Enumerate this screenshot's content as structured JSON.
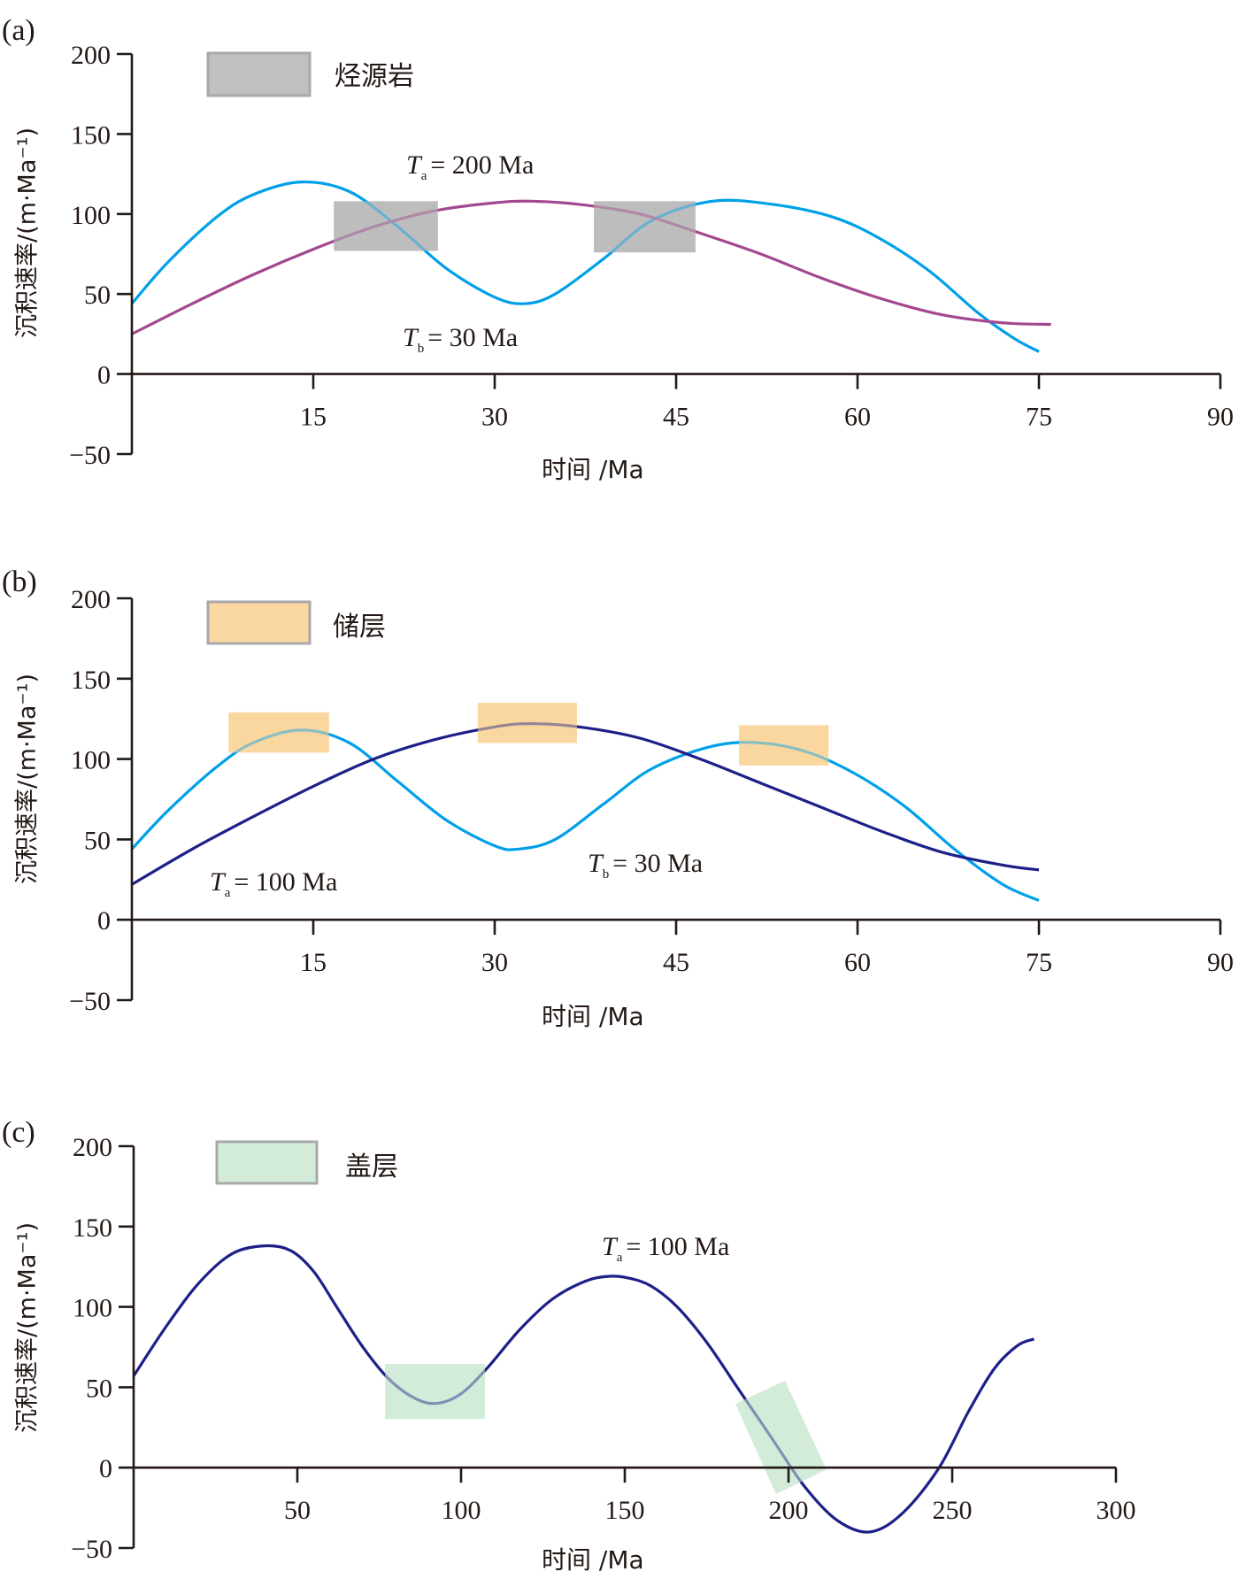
{
  "chart_data": [
    {
      "type": "line",
      "panel_label": "(a)",
      "xlabel": "时间 /Ma",
      "ylabel": "沉积速率/(m·Ma⁻¹)",
      "xlim": [
        0,
        90
      ],
      "ylim": [
        -50,
        200
      ],
      "xticks": [
        15,
        30,
        45,
        60,
        75,
        90
      ],
      "yticks": [
        -50,
        0,
        50,
        100,
        150,
        200
      ],
      "xtick_labels": [
        "15",
        "30",
        "45",
        "60",
        "75",
        "90"
      ],
      "ytick_labels": [
        "−50",
        "0",
        "50",
        "100",
        "150",
        "200"
      ],
      "legend": {
        "label": "烃源岩",
        "color": "#c0c0c0",
        "border": "#a8a8a8",
        "position": "top-left"
      },
      "series": [
        {
          "name": "Tb = 30 Ma",
          "color": "#00a0e9",
          "x": [
            0,
            3,
            7,
            10,
            14,
            18,
            22,
            26,
            30,
            32.5,
            35,
            39,
            43,
            48,
            53,
            58,
            62,
            66,
            70,
            73,
            75
          ],
          "y": [
            44,
            70,
            98,
            112,
            120,
            114,
            92,
            66,
            48,
            44,
            50,
            72,
            96,
            108,
            106,
            98,
            84,
            64,
            38,
            22,
            14
          ]
        },
        {
          "name": "Ta = 200 Ma",
          "color": "#a3478f",
          "x": [
            0,
            5,
            10,
            15,
            20,
            25,
            30,
            33,
            37,
            42,
            47,
            52,
            57,
            62,
            67,
            72,
            76
          ],
          "y": [
            25,
            44,
            62,
            78,
            92,
            102,
            107,
            108,
            106,
            100,
            88,
            75,
            60,
            47,
            37,
            32,
            31
          ]
        }
      ],
      "annotations": [
        {
          "kind": "label",
          "symbol": "T",
          "sub": "a",
          "text": "= 200 Ma",
          "x": 30,
          "y": 130
        },
        {
          "kind": "label",
          "symbol": "T",
          "sub": "b",
          "text": "= 30 Ma",
          "x": 30,
          "y": 24
        }
      ],
      "highlight_boxes": [
        {
          "x0": 16.7,
          "x1": 25.3,
          "y0": 77,
          "y1": 108,
          "color": "#bdbdbd"
        },
        {
          "x0": 38.2,
          "x1": 46.6,
          "y0": 76,
          "y1": 108,
          "color": "#bdbdbd"
        }
      ]
    },
    {
      "type": "line",
      "panel_label": "(b)",
      "xlabel": "时间 /Ma",
      "ylabel": "沉积速率/(m·Ma⁻¹)",
      "xlim": [
        0,
        90
      ],
      "ylim": [
        -50,
        200
      ],
      "xticks": [
        15,
        30,
        45,
        60,
        75,
        90
      ],
      "yticks": [
        -50,
        0,
        50,
        100,
        150,
        200
      ],
      "xtick_labels": [
        "15",
        "30",
        "45",
        "60",
        "75",
        "90"
      ],
      "ytick_labels": [
        "−50",
        "0",
        "50",
        "100",
        "150",
        "200"
      ],
      "legend": {
        "label": "储层",
        "color": "#fbd7a1",
        "border": "#a8a8a8",
        "position": "top-left"
      },
      "series": [
        {
          "name": "Tb = 30 Ma",
          "color": "#00a0e9",
          "x": [
            0,
            3,
            7,
            10,
            14,
            18,
            22,
            26,
            30,
            32,
            35,
            39,
            43,
            48,
            52,
            56,
            60,
            64,
            68,
            72,
            75
          ],
          "y": [
            44,
            68,
            95,
            110,
            118,
            110,
            86,
            62,
            46,
            44,
            50,
            72,
            94,
            108,
            110,
            104,
            90,
            70,
            44,
            22,
            12
          ]
        },
        {
          "name": "Ta = 100 Ma",
          "color": "#1d2088",
          "x": [
            0,
            5,
            10,
            15,
            20,
            25,
            30,
            33,
            37,
            42,
            47,
            52,
            57,
            62,
            67,
            72,
            75
          ],
          "y": [
            22,
            44,
            64,
            83,
            100,
            112,
            120,
            122,
            120,
            113,
            100,
            85,
            70,
            55,
            42,
            34,
            31
          ]
        }
      ],
      "annotations": [
        {
          "kind": "label",
          "symbol": "T",
          "sub": "a",
          "text": "= 100 Ma",
          "x": 6,
          "y": 28
        },
        {
          "kind": "label",
          "symbol": "T",
          "sub": "b",
          "text": "= 30 Ma",
          "x": 37,
          "y": 40
        }
      ],
      "highlight_boxes": [
        {
          "x0": 8.0,
          "x1": 16.3,
          "y0": 104,
          "y1": 129,
          "color": "#fbd7a1"
        },
        {
          "x0": 28.6,
          "x1": 36.8,
          "y0": 110,
          "y1": 135,
          "color": "#fbd7a1"
        },
        {
          "x0": 50.2,
          "x1": 57.6,
          "y0": 96,
          "y1": 121,
          "color": "#fbd7a1"
        }
      ]
    },
    {
      "type": "line",
      "panel_label": "(c)",
      "xlabel": "时间 /Ma",
      "ylabel": "沉积速率/(m·Ma⁻¹)",
      "xlim": [
        0,
        300
      ],
      "ylim": [
        -50,
        200
      ],
      "xticks": [
        50,
        100,
        150,
        200,
        250,
        300
      ],
      "yticks": [
        -50,
        0,
        50,
        100,
        150,
        200
      ],
      "xtick_labels": [
        "50",
        "100",
        "150",
        "200",
        "250",
        "300"
      ],
      "ytick_labels": [
        "−50",
        "0",
        "50",
        "100",
        "150",
        "200"
      ],
      "legend": {
        "label": "盖层",
        "color": "#d3ecd9",
        "border": "#a8a8a8",
        "position": "top-left"
      },
      "series": [
        {
          "name": "Ta = 100 Ma",
          "color": "#1d2088",
          "x": [
            0,
            10,
            20,
            30,
            40,
            48,
            55,
            62,
            70,
            78,
            86,
            92.7,
            100,
            108,
            118,
            128,
            138,
            145,
            151,
            158,
            166,
            175,
            185,
            195,
            205,
            215,
            225,
            235,
            246,
            255,
            263,
            270,
            275
          ],
          "y": [
            57,
            88,
            115,
            133,
            138,
            135,
            122,
            100,
            75,
            55,
            43,
            40,
            46,
            62,
            86,
            105,
            116,
            119,
            118,
            113,
            100,
            78,
            48,
            18,
            -12,
            -33,
            -40,
            -28,
            0,
            35,
            62,
            76,
            80
          ]
        }
      ],
      "annotations": [
        {
          "kind": "label",
          "symbol": "T",
          "sub": "a",
          "text": "= 100 Ma",
          "x": 141,
          "y": 141
        }
      ],
      "highlight_boxes": [
        {
          "x0": 76.8,
          "x1": 107.3,
          "y0": 30.3,
          "y1": 64.5,
          "color": "#d3ecd9"
        }
      ],
      "highlight_polygons": [
        {
          "points": [
            [
              183.8,
              39.7
            ],
            [
              198.9,
              54.0
            ],
            [
              211.6,
              -1.1
            ],
            [
              196.2,
              -16.5
            ]
          ],
          "color": "#d3ecd9"
        }
      ]
    }
  ]
}
